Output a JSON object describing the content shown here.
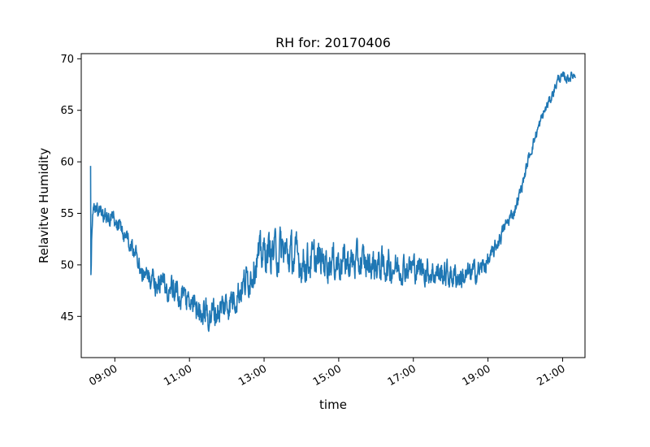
{
  "chart_data": {
    "type": "line",
    "title": "RH for: 20170406",
    "xlabel": "time",
    "ylabel": "Relavitve Humidity",
    "xlim": [
      8.1,
      21.6
    ],
    "ylim": [
      41.0,
      70.5
    ],
    "grid": false,
    "legend": "none",
    "xticks": [
      {
        "value": 9,
        "label": "09:00"
      },
      {
        "value": 11,
        "label": "11:00"
      },
      {
        "value": 13,
        "label": "13:00"
      },
      {
        "value": 15,
        "label": "15:00"
      },
      {
        "value": 17,
        "label": "17:00"
      },
      {
        "value": 19,
        "label": "19:00"
      },
      {
        "value": 21,
        "label": "21:00"
      }
    ],
    "yticks": [
      {
        "value": 45,
        "label": "45"
      },
      {
        "value": 50,
        "label": "50"
      },
      {
        "value": 55,
        "label": "55"
      },
      {
        "value": 60,
        "label": "60"
      },
      {
        "value": 65,
        "label": "65"
      },
      {
        "value": 70,
        "label": "70"
      }
    ],
    "series": [
      {
        "name": "RH",
        "color": "#1f77b4",
        "noise_seed": 20170406,
        "noise_amplitude": [
          [
            8.35,
            0.8
          ],
          [
            9.4,
            1.0
          ],
          [
            10.5,
            1.6
          ],
          [
            11.5,
            1.7
          ],
          [
            12.5,
            1.8
          ],
          [
            13.0,
            2.0
          ],
          [
            13.5,
            2.4
          ],
          [
            14.5,
            1.9
          ],
          [
            15.5,
            1.9
          ],
          [
            17.0,
            1.5
          ],
          [
            18.4,
            1.4
          ],
          [
            19.1,
            0.9
          ],
          [
            19.9,
            0.6
          ],
          [
            21.35,
            0.5
          ]
        ],
        "points": [
          [
            8.35,
            60.0
          ],
          [
            8.36,
            48.5
          ],
          [
            8.38,
            53.5
          ],
          [
            8.42,
            55.5
          ],
          [
            8.6,
            55.0
          ],
          [
            8.8,
            54.6
          ],
          [
            9.0,
            54.2
          ],
          [
            9.2,
            53.2
          ],
          [
            9.4,
            52.0
          ],
          [
            9.6,
            50.8
          ],
          [
            9.8,
            49.0
          ],
          [
            10.0,
            48.5
          ],
          [
            10.3,
            48.0
          ],
          [
            10.6,
            47.3
          ],
          [
            10.9,
            46.5
          ],
          [
            11.2,
            46.0
          ],
          [
            11.5,
            45.2
          ],
          [
            11.8,
            45.6
          ],
          [
            12.1,
            46.5
          ],
          [
            12.4,
            47.8
          ],
          [
            12.6,
            48.8
          ],
          [
            12.8,
            50.5
          ],
          [
            13.0,
            51.2
          ],
          [
            13.5,
            51.3
          ],
          [
            14.0,
            50.3
          ],
          [
            14.5,
            50.4
          ],
          [
            15.0,
            50.3
          ],
          [
            15.5,
            50.2
          ],
          [
            16.0,
            50.0
          ],
          [
            16.5,
            49.8
          ],
          [
            17.0,
            49.8
          ],
          [
            17.5,
            49.3
          ],
          [
            18.0,
            49.0
          ],
          [
            18.4,
            48.8
          ],
          [
            18.8,
            49.6
          ],
          [
            19.1,
            50.8
          ],
          [
            19.3,
            52.5
          ],
          [
            19.5,
            54.0
          ],
          [
            19.7,
            55.2
          ],
          [
            19.9,
            57.5
          ],
          [
            20.1,
            60.5
          ],
          [
            20.3,
            62.8
          ],
          [
            20.5,
            64.8
          ],
          [
            20.7,
            66.3
          ],
          [
            20.9,
            68.2
          ],
          [
            21.1,
            68.1
          ],
          [
            21.35,
            68.5
          ]
        ]
      }
    ]
  }
}
